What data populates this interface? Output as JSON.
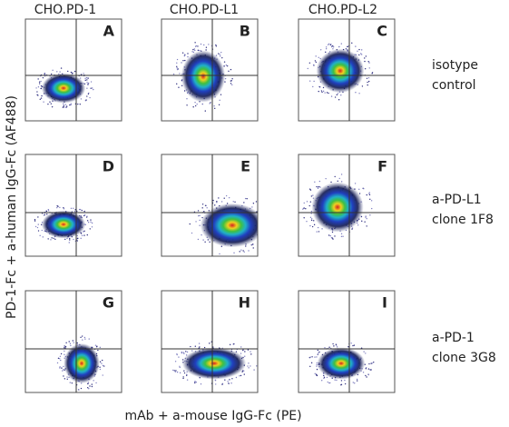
{
  "columns": [
    "CHO.PD-1",
    "CHO.PD-L1",
    "CHO.PD-L2"
  ],
  "panels": [
    "A",
    "B",
    "C",
    "D",
    "E",
    "F",
    "G",
    "H",
    "I"
  ],
  "rows": [
    {
      "lines": [
        "isotype",
        "control"
      ]
    },
    {
      "lines": [
        "a-PD-L1",
        "clone 1F8"
      ]
    },
    {
      "lines": [
        "a-PD-1",
        "clone 3G8"
      ]
    }
  ],
  "y_axis_label": "PD-1-Fc + a-human IgG-Fc (AF488)",
  "x_axis_label": "mAb + a-mouse IgG-Fc (PE)"
}
